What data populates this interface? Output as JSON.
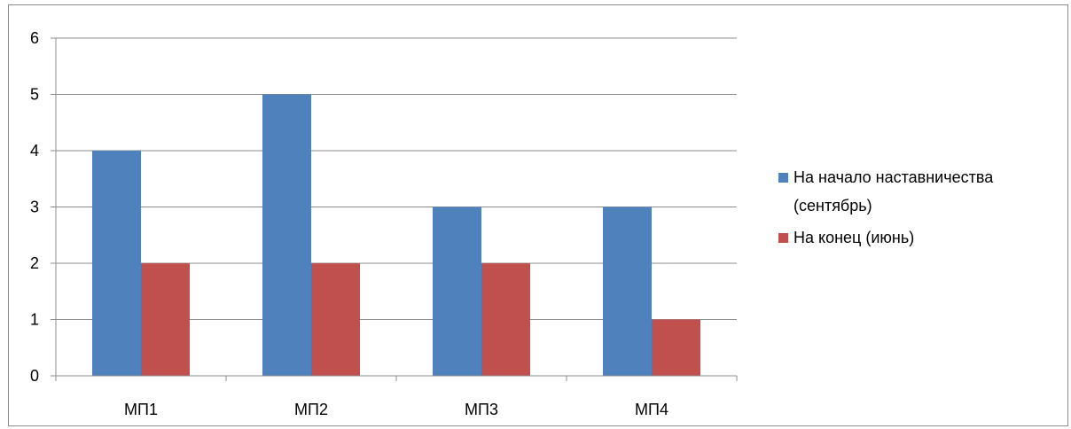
{
  "chart_data": {
    "type": "bar",
    "categories": [
      "МП1",
      "МП2",
      "МП3",
      "МП4"
    ],
    "series": [
      {
        "name": "На начало наставничества (сентябрь)",
        "values": [
          4,
          5,
          3,
          3
        ],
        "color": "#4F81BD"
      },
      {
        "name": "На конец (июнь)",
        "values": [
          2,
          2,
          2,
          1
        ],
        "color": "#C0504D"
      }
    ],
    "title": "",
    "xlabel": "",
    "ylabel": "",
    "ylim": [
      0,
      6
    ],
    "yticks": [
      "0",
      "1",
      "2",
      "3",
      "4",
      "5",
      "6"
    ],
    "grid": true,
    "legend_position": "right"
  }
}
